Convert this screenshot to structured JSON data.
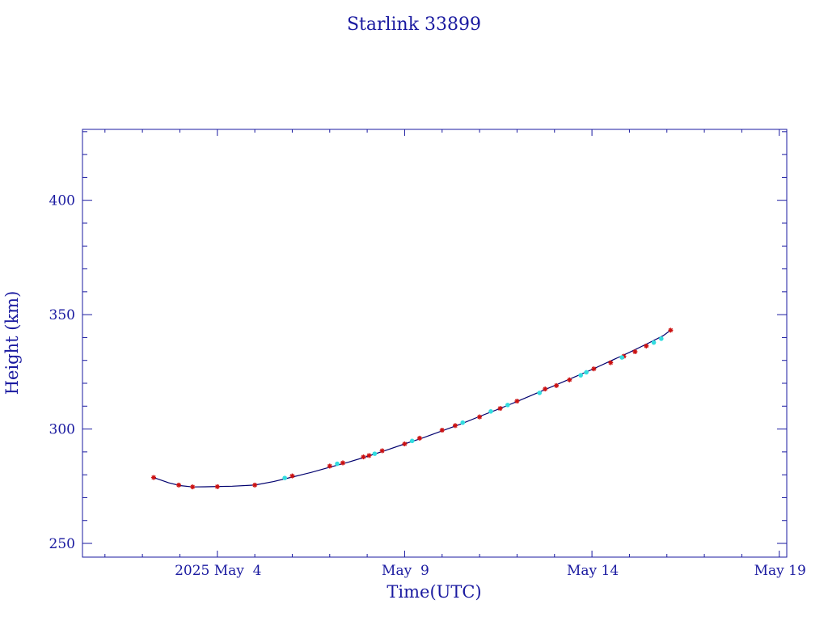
{
  "chart_data": {
    "type": "line",
    "title": "Starlink 33899",
    "xlabel": "Time(UTC)",
    "ylabel": "Height (km)",
    "time_axis": "x values are days since 2025 May 4 00:00 UTC",
    "xlim": [
      -3.6,
      15.2
    ],
    "ylim": [
      244,
      431
    ],
    "x_ticks": [
      {
        "value": 0,
        "label": "2025 May  4"
      },
      {
        "value": 5,
        "label": "May  9"
      },
      {
        "value": 10,
        "label": "May 14"
      },
      {
        "value": 15,
        "label": "May 19"
      }
    ],
    "y_ticks": [
      250,
      300,
      350,
      400
    ],
    "grid": false,
    "colors": {
      "axis": "#1a1aa0",
      "line": "#00006e",
      "red_marker": "#cc1111",
      "cyan_marker": "#33dde0"
    },
    "series": [
      {
        "name": "",
        "marker": "line",
        "points": [
          [
            -1.7,
            278.8
          ],
          [
            -1.3,
            276.5
          ],
          [
            -1.0,
            275.3
          ],
          [
            -0.66,
            274.7
          ],
          [
            -0.2,
            274.8
          ],
          [
            0.4,
            275.0
          ],
          [
            1.0,
            275.5
          ],
          [
            1.5,
            277.0
          ],
          [
            2.0,
            279.0
          ],
          [
            2.5,
            281.0
          ],
          [
            3.0,
            283.3
          ],
          [
            3.5,
            285.5
          ],
          [
            4.0,
            288.0
          ],
          [
            4.5,
            290.7
          ],
          [
            5.0,
            293.5
          ],
          [
            5.5,
            296.2
          ],
          [
            6.0,
            299.2
          ],
          [
            6.5,
            302.2
          ],
          [
            7.0,
            305.5
          ],
          [
            7.5,
            308.7
          ],
          [
            8.0,
            312.0
          ],
          [
            8.5,
            315.5
          ],
          [
            9.0,
            319.0
          ],
          [
            9.5,
            322.5
          ],
          [
            10.0,
            326.0
          ],
          [
            10.5,
            329.8
          ],
          [
            11.0,
            333.5
          ],
          [
            11.5,
            337.5
          ],
          [
            11.9,
            340.8
          ],
          [
            12.1,
            343.2
          ]
        ]
      },
      {
        "name": "",
        "marker": "red-star",
        "points": [
          [
            -1.7,
            278.8
          ],
          [
            -1.03,
            275.5
          ],
          [
            -0.66,
            274.7
          ],
          [
            0.0,
            274.8
          ],
          [
            1.0,
            275.5
          ],
          [
            2.0,
            279.5
          ],
          [
            3.0,
            283.8
          ],
          [
            3.35,
            285.2
          ],
          [
            3.9,
            287.8
          ],
          [
            4.05,
            288.4
          ],
          [
            4.4,
            290.5
          ],
          [
            5.0,
            293.5
          ],
          [
            5.4,
            296.0
          ],
          [
            6.0,
            299.5
          ],
          [
            6.35,
            301.5
          ],
          [
            7.0,
            305.3
          ],
          [
            7.55,
            309.0
          ],
          [
            8.0,
            312.2
          ],
          [
            8.75,
            317.5
          ],
          [
            9.05,
            319.0
          ],
          [
            9.4,
            321.5
          ],
          [
            10.05,
            326.3
          ],
          [
            10.5,
            329.0
          ],
          [
            10.85,
            331.8
          ],
          [
            11.15,
            333.8
          ],
          [
            11.45,
            336.3
          ],
          [
            12.1,
            343.2
          ]
        ]
      },
      {
        "name": "",
        "marker": "cyan-dot",
        "points": [
          [
            1.8,
            278.6
          ],
          [
            3.2,
            284.8
          ],
          [
            4.2,
            289.2
          ],
          [
            5.2,
            294.8
          ],
          [
            6.55,
            302.8
          ],
          [
            7.3,
            307.7
          ],
          [
            7.75,
            310.5
          ],
          [
            8.6,
            315.8
          ],
          [
            9.7,
            323.5
          ],
          [
            9.85,
            324.8
          ],
          [
            10.8,
            331.3
          ],
          [
            11.65,
            337.8
          ],
          [
            11.85,
            339.5
          ]
        ]
      }
    ]
  }
}
